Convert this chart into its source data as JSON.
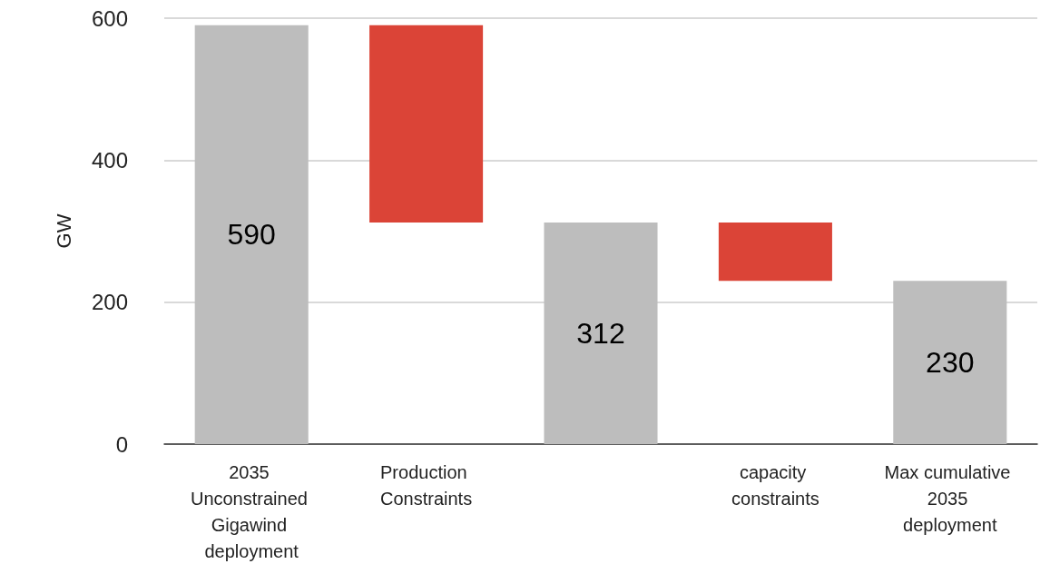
{
  "chart_data": {
    "type": "bar",
    "ylabel": "GW",
    "categories": [
      "2035 Unconstrained Gigawind deployment",
      "Production Constraints",
      null,
      "capacity constraints",
      "Max cumulative 2035 deployment"
    ],
    "values": [
      590,
      -278,
      312,
      -82,
      230
    ],
    "base": [
      0,
      590,
      0,
      312,
      0
    ],
    "colors": [
      "#bdbdbd",
      "#db4437",
      "#bdbdbd",
      "#db4437",
      "#bdbdbd"
    ],
    "value_labels": [
      "590",
      null,
      "312",
      null,
      "230"
    ],
    "ylim": [
      0,
      600
    ],
    "yticks": [
      0,
      200,
      400,
      600
    ],
    "grid": "y"
  }
}
